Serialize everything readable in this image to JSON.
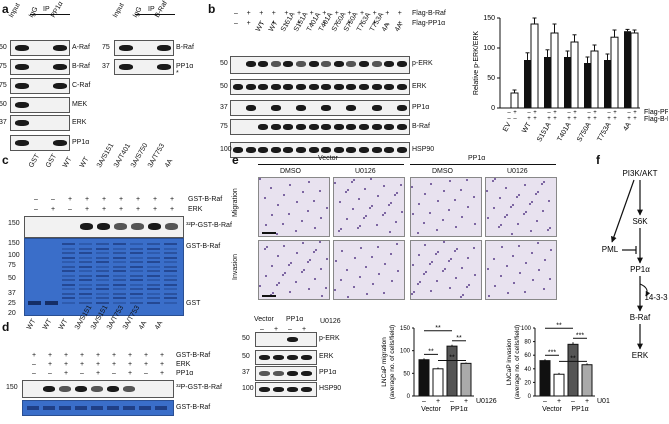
{
  "panels": {
    "a": {
      "letter": "a",
      "blot1": {
        "ip": "IP",
        "lanes": [
          "Input",
          "IgG",
          "PP1α"
        ],
        "bands": [
          "A-Raf",
          "B-Raf",
          "C-Raf",
          "MEK",
          "ERK",
          "PP1α"
        ],
        "markers": [
          "50",
          "75",
          "75",
          "50",
          "37"
        ]
      },
      "blot2": {
        "ip": "IP",
        "lanes": [
          "Input",
          "IgG",
          "B-Raf"
        ],
        "bands": [
          "B-Raf",
          "PP1α"
        ],
        "markers": [
          "75",
          "37"
        ],
        "star": "*"
      }
    },
    "b": {
      "letter": "b",
      "treat": [
        "–",
        "–",
        "WT",
        "WT",
        "S151A",
        "S151A",
        "T401A",
        "T401A",
        "S750A",
        "S750A",
        "T753A",
        "T753A",
        "4A",
        "4A"
      ],
      "row_flag_braf": [
        "–",
        "+",
        "+",
        "+",
        "+",
        "+",
        "+",
        "+",
        "+",
        "+",
        "+",
        "+",
        "+",
        "+"
      ],
      "row_flag_pp1": [
        "–",
        "+",
        "–",
        "+",
        "–",
        "+",
        "–",
        "+",
        "–",
        "+",
        "–",
        "+",
        "–",
        "+"
      ],
      "row_labels": [
        "Flag-B-Raf",
        "Flag-PP1α"
      ],
      "bands": [
        "p-ERK",
        "ERK",
        "PP1α",
        "B-Raf",
        "HSP90"
      ],
      "markers": [
        "50",
        "50",
        "37",
        "75",
        "100"
      ]
    },
    "c": {
      "letter": "c",
      "lanes": [
        "GST",
        "GST",
        "WT",
        "WT",
        "3A/S151",
        "3A/T401",
        "3A/S750",
        "3A/T753",
        "4A"
      ],
      "erk": [
        "–",
        "+",
        "–",
        "+",
        "+",
        "+",
        "+",
        "+",
        "+"
      ],
      "row_labels": [
        "GST-B-Raf",
        "ERK"
      ],
      "autorad": "³²P-GST-B-Raf",
      "gel_labels": [
        "GST-B-Raf",
        "GST"
      ],
      "markers": [
        "150",
        "150",
        "100",
        "75",
        "50",
        "37",
        "25",
        "20"
      ]
    },
    "d": {
      "letter": "d",
      "lanes": [
        "WT",
        "WT",
        "WT",
        "3A/S151",
        "3A/S151",
        "3A/T753",
        "3A/T753",
        "4A",
        "4A"
      ],
      "gst_braf": [
        "+",
        "+",
        "+",
        "+",
        "+",
        "+",
        "+",
        "+",
        "+"
      ],
      "erk": [
        "–",
        "+",
        "+",
        "+",
        "+",
        "+",
        "+",
        "+",
        "+"
      ],
      "pp1": [
        "–",
        "–",
        "+",
        "–",
        "+",
        "–",
        "+",
        "–",
        "+"
      ],
      "row_labels": [
        "GST-B-Raf",
        "ERK",
        "PP1α"
      ],
      "bands": [
        "³²P-GST-B-Raf",
        "GST-B-Raf"
      ],
      "markers": [
        "150"
      ]
    },
    "e": {
      "letter": "e",
      "groups": [
        "Vector",
        "PP1α"
      ],
      "conditions": [
        "DMSO",
        "U0126",
        "DMSO",
        "U0126"
      ],
      "rows": [
        "Migration",
        "Invasion"
      ],
      "blot": {
        "groups": [
          "Vector",
          "PP1α"
        ],
        "u0126": [
          "–",
          "+",
          "–",
          "+"
        ],
        "u_label": "U0126",
        "bands": [
          "p-ERK",
          "ERK",
          "PP1α",
          "HSP90"
        ],
        "markers": [
          "50",
          "50",
          "37",
          "100"
        ]
      },
      "sig": {
        "mig": [
          "**",
          "**",
          "**",
          "**"
        ],
        "inv": [
          "***",
          "***",
          "**",
          "**"
        ]
      },
      "x_signs": [
        "–",
        "+",
        "–",
        "+"
      ],
      "x_groups": [
        "Vector",
        "PP1α"
      ],
      "x_u": "U0126"
    },
    "f": {
      "letter": "f",
      "nodes": [
        "PI3K/AKT",
        "S6K",
        "PML",
        "PP1α",
        "14-3-3",
        "B-Raf",
        "ERK"
      ]
    }
  },
  "chart_data": [
    {
      "type": "bar",
      "ylabel": "Relative p-ERK/ERK",
      "categories": [
        "EV",
        "WT",
        "S151A",
        "T401A",
        "S750A",
        "T753A",
        "4A"
      ],
      "series": [
        {
          "name": "",
          "values": [
            null,
            80,
            85,
            85,
            75,
            80,
            128
          ]
        },
        {
          "name": "",
          "values": [
            25,
            140,
            125,
            110,
            95,
            118,
            125
          ]
        }
      ],
      "errors": [
        [
          null,
          12,
          12,
          10,
          10,
          10,
          3
        ],
        [
          5,
          10,
          15,
          12,
          10,
          12,
          5
        ]
      ],
      "pp1_row": [
        "–",
        "+",
        "–",
        "+",
        "–",
        "+",
        "–",
        "+",
        "–",
        "+",
        "–",
        "+",
        "–",
        "+"
      ],
      "braf_row": [
        "–",
        "–",
        "+",
        "+",
        "+",
        "+",
        "+",
        "+",
        "+",
        "+",
        "+",
        "+",
        "+",
        "+"
      ],
      "row_labels": [
        "Flag-PP1α",
        "Flag-B-Raf"
      ],
      "yticks": [
        0,
        50,
        100,
        150
      ],
      "ylim": [
        0,
        150
      ]
    },
    {
      "type": "bar",
      "ylabel": "LNCaP migration",
      "ylabel2": "(average no. of cells/field)",
      "categories": [
        "Vector –",
        "Vector +",
        "PP1α –",
        "PP1α +"
      ],
      "values": [
        80,
        60,
        110,
        72
      ],
      "errors": [
        3,
        3,
        3,
        2
      ],
      "yticks": [
        0,
        50,
        100,
        150
      ],
      "ylim": [
        0,
        150
      ]
    },
    {
      "type": "bar",
      "ylabel": "LNCaP invasion",
      "ylabel2": "(average no. of cells/field)",
      "categories": [
        "Vector –",
        "Vector +",
        "PP1α –",
        "PP1α +"
      ],
      "values": [
        52,
        32,
        76,
        46
      ],
      "errors": [
        2,
        2,
        3,
        2
      ],
      "yticks": [
        0,
        20,
        40,
        60,
        80,
        100
      ],
      "ylim": [
        0,
        100
      ]
    }
  ]
}
